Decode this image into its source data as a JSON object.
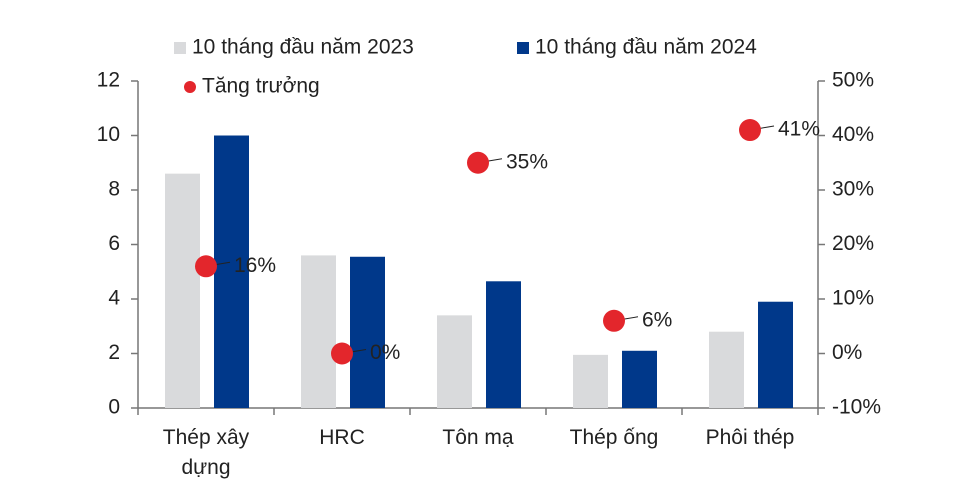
{
  "chart_data": {
    "type": "bar",
    "categories": [
      "Thép xây dựng",
      "HRC",
      "Tôn mạ",
      "Thép ống",
      "Phôi thép"
    ],
    "series": [
      {
        "name": "10 tháng đầu năm 2023",
        "color": "#d9dadc",
        "values": [
          8.6,
          5.6,
          3.4,
          1.95,
          2.8
        ]
      },
      {
        "name": "10 tháng đầu năm 2024",
        "color": "#00388a",
        "values": [
          10.0,
          5.55,
          4.65,
          2.1,
          3.9
        ]
      },
      {
        "name": "Tăng trưởng",
        "type": "scatter",
        "axis": "y2",
        "color": "#e3262c",
        "values": [
          16,
          0,
          35,
          6,
          41
        ],
        "value_labels": [
          "16%",
          "0%",
          "35%",
          "6%",
          "41%"
        ]
      }
    ],
    "ylim": [
      0,
      12
    ],
    "yticks": [
      0,
      2,
      4,
      6,
      8,
      10,
      12
    ],
    "y2lim": [
      -10,
      50
    ],
    "y2ticks": [
      {
        "value": -10,
        "label": "-10%"
      },
      {
        "value": 0,
        "label": "0%"
      },
      {
        "value": 10,
        "label": "10%"
      },
      {
        "value": 20,
        "label": "20%"
      },
      {
        "value": 30,
        "label": "30%"
      },
      {
        "value": 40,
        "label": "40%"
      },
      {
        "value": 50,
        "label": "50%"
      }
    ]
  }
}
